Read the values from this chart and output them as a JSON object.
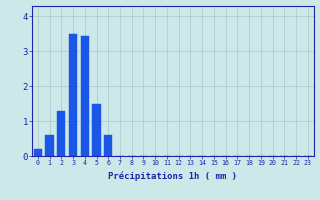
{
  "values": [
    0.2,
    0.6,
    1.3,
    3.5,
    3.45,
    1.5,
    0.6,
    0,
    0,
    0,
    0,
    0,
    0,
    0,
    0,
    0,
    0,
    0,
    0,
    0,
    0,
    0,
    0,
    0
  ],
  "bar_color": "#1a56e8",
  "bar_edge_color": "#1a56e8",
  "background_color": "#cce8e8",
  "grid_color": "#aac8c8",
  "axis_color": "#2222aa",
  "tick_color": "#2222aa",
  "xlabel": "Précipitations 1h ( mm )",
  "xlabel_color": "#2222aa",
  "xlabel_fontsize": 6.5,
  "yticks": [
    0,
    1,
    2,
    3,
    4
  ],
  "ylim": [
    0,
    4.3
  ],
  "xlim": [
    -0.5,
    23.5
  ],
  "xtick_labels": [
    "0",
    "1",
    "2",
    "3",
    "4",
    "5",
    "6",
    "7",
    "8",
    "9",
    "10",
    "11",
    "12",
    "13",
    "14",
    "15",
    "16",
    "17",
    "18",
    "19",
    "20",
    "21",
    "22",
    "23"
  ],
  "xtick_fontsize": 4.8,
  "ytick_fontsize": 6.5,
  "bar_width": 0.7
}
